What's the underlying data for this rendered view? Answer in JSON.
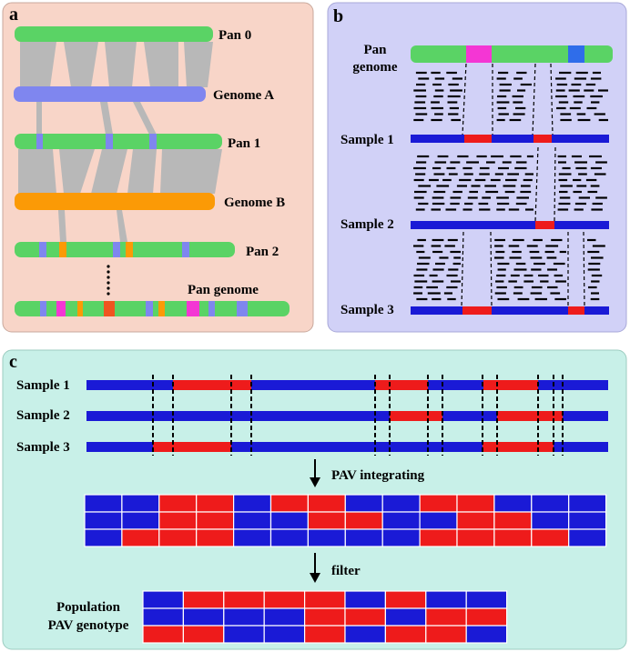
{
  "panel_a": {
    "letter": "a",
    "labels": {
      "pan0": "Pan 0",
      "genome_a": "Genome A",
      "pan1": "Pan 1",
      "genome_b": "Genome B",
      "pan2": "Pan 2",
      "pan_genome": "Pan genome"
    }
  },
  "panel_b": {
    "letter": "b",
    "labels": {
      "pan_genome_line1": "Pan",
      "pan_genome_line2": "genome",
      "sample1": "Sample 1",
      "sample2": "Sample 2",
      "sample3": "Sample 3"
    }
  },
  "panel_c": {
    "letter": "c",
    "labels": {
      "sample1": "Sample 1",
      "sample2": "Sample 2",
      "sample3": "Sample 3",
      "step1": "PAV integrating",
      "step2": "filter",
      "population_line1": "Population",
      "population_line2": "PAV genotype"
    },
    "matrix1": [
      [
        "B",
        "B",
        "R",
        "R",
        "B",
        "R",
        "R",
        "B",
        "B",
        "R",
        "R",
        "B",
        "B",
        "B"
      ],
      [
        "B",
        "B",
        "R",
        "R",
        "B",
        "B",
        "R",
        "R",
        "B",
        "B",
        "R",
        "R",
        "B",
        "B"
      ],
      [
        "B",
        "R",
        "R",
        "R",
        "B",
        "B",
        "B",
        "B",
        "B",
        "R",
        "R",
        "R",
        "R",
        "B"
      ]
    ],
    "matrix2": [
      [
        "B",
        "R",
        "R",
        "R",
        "R",
        "B",
        "R",
        "B",
        "B"
      ],
      [
        "B",
        "B",
        "B",
        "B",
        "R",
        "R",
        "B",
        "R",
        "R"
      ],
      [
        "R",
        "R",
        "B",
        "B",
        "R",
        "B",
        "R",
        "R",
        "B"
      ]
    ]
  },
  "colors": {
    "panel_a_bg": "#f8d5c8",
    "panel_b_bg": "#d1d1f7",
    "panel_c_bg": "#c8f0e8",
    "green": "#5ad365",
    "purple": "#7f86ef",
    "orange": "#fb9a06",
    "magenta": "#f436d4",
    "red_orange": "#ef5520",
    "gray": "#b8b8b8",
    "blue": "#1a1ad6",
    "red": "#ee1b1b",
    "sky": "#2f6dea"
  }
}
